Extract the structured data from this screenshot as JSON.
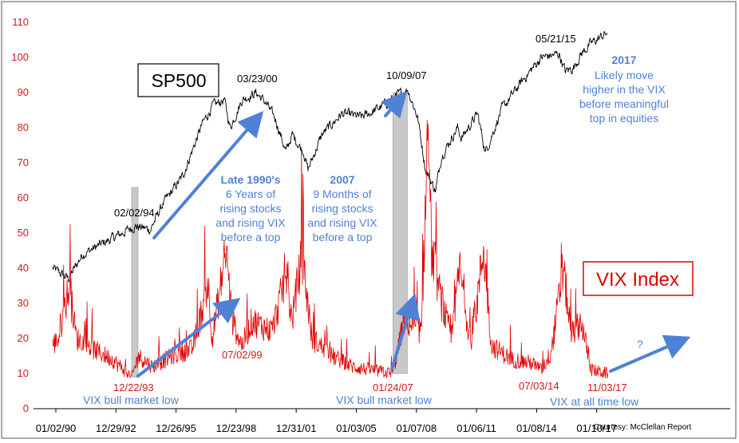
{
  "chart_data": {
    "type": "line",
    "x_tick_labels": [
      "01/02/90",
      "12/29/92",
      "12/26/95",
      "12/23/98",
      "12/31/01",
      "01/03/05",
      "01/07/08",
      "01/06/11",
      "01/08/14",
      "01/10/17"
    ],
    "y_tick_labels": [
      "0",
      "10",
      "20",
      "30",
      "40",
      "50",
      "60",
      "70",
      "80",
      "90",
      "100",
      "110"
    ],
    "ylim": [
      0,
      110
    ],
    "series": [
      {
        "name": "SP500",
        "color": "#000000",
        "x": [
          1990.0,
          1990.8,
          1991.5,
          1992.5,
          1993.5,
          1994.1,
          1994.9,
          1995.5,
          1996.5,
          1997.5,
          1998.0,
          1998.6,
          1998.9,
          1999.5,
          2000.2,
          2000.7,
          2001.2,
          2001.7,
          2002.0,
          2002.6,
          2002.8,
          2003.5,
          2004.5,
          2005.5,
          2006.5,
          2007.0,
          2007.8,
          2008.3,
          2008.7,
          2009.2,
          2009.5,
          2010.3,
          2010.5,
          2011.3,
          2011.7,
          2012.5,
          2013.5,
          2014.5,
          2015.4,
          2015.7,
          2016.1,
          2016.5,
          2017.0,
          2017.8
        ],
        "values": [
          40,
          37,
          44,
          47,
          50,
          52,
          51,
          58,
          66,
          81,
          86,
          88,
          80,
          88,
          90,
          87,
          82,
          73,
          78,
          73,
          68,
          78,
          84,
          83,
          86,
          88,
          91,
          83,
          68,
          62,
          72,
          80,
          77,
          84,
          73,
          85,
          93,
          100,
          101,
          96,
          97,
          101,
          104,
          107
        ]
      },
      {
        "name": "VIX Index",
        "color": "#e00000",
        "x": [
          1990.0,
          1990.3,
          1990.8,
          1991.0,
          1991.2,
          1992.0,
          1993.0,
          1993.96,
          1994.3,
          1995.0,
          1996.0,
          1997.0,
          1997.8,
          1998.0,
          1998.7,
          1999.0,
          1999.5,
          2000.0,
          2001.0,
          2001.7,
          2002.0,
          2002.5,
          2003.0,
          2004.0,
          2005.0,
          2006.0,
          2007.06,
          2007.6,
          2008.0,
          2008.5,
          2008.8,
          2009.0,
          2009.5,
          2010.0,
          2010.4,
          2011.0,
          2011.6,
          2012.0,
          2013.0,
          2014.0,
          2014.5,
          2015.0,
          2015.6,
          2016.0,
          2016.5,
          2017.0,
          2017.84
        ],
        "values": [
          18,
          20,
          34,
          28,
          20,
          17,
          14,
          9,
          15,
          12,
          15,
          17,
          35,
          20,
          45,
          25,
          18,
          25,
          22,
          38,
          25,
          44,
          20,
          15,
          12,
          11,
          10,
          25,
          24,
          22,
          80,
          45,
          30,
          20,
          40,
          17,
          46,
          18,
          14,
          13,
          11,
          16,
          40,
          21,
          25,
          11,
          10
        ]
      }
    ],
    "shaded_regions": [
      {
        "start": 1993.96,
        "end": 1994.09
      },
      {
        "start": 2007.06,
        "end": 2007.78
      }
    ]
  },
  "labels": {
    "sp_title": "SP500",
    "vix_title": "VIX Index",
    "courtesy": "Courtesy: McClellan Report"
  },
  "annotations": {
    "a_020294": "02/02/94",
    "a_032300": "03/23/00",
    "a_100907": "10/09/07",
    "a_052115": "05/21/15",
    "a_122293": "12/22/93",
    "a_070299": "07/02/99",
    "a_012407": "01/24/07",
    "a_070314": "07/03/14",
    "a_110317": "11/03/17",
    "vix_low_1": "VIX bull market low",
    "vix_low_2": "VIX bull market low",
    "vix_low_3": "VIX at all time low",
    "late90_title": "Late 1990's",
    "late90_l1": "6 Years of",
    "late90_l2": "rising stocks",
    "late90_l3": "and rising VIX",
    "late90_l4": "before a top",
    "y2007_title": "2007",
    "y2007_l1": "9 Months of",
    "y2007_l2": "rising stocks",
    "y2007_l3": "and rising VIX",
    "y2007_l4": "before a top",
    "y2017_title": "2017",
    "y2017_l1": "Likely move",
    "y2017_l2": "higher in the VIX",
    "y2017_l3": "before meaningful",
    "y2017_l4": "top in equities",
    "question": "?"
  }
}
